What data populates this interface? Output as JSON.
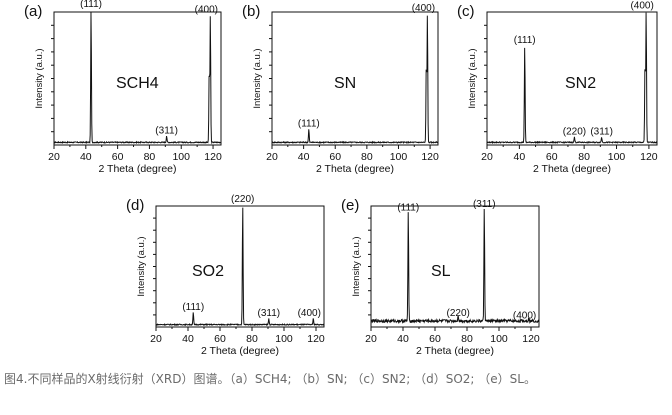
{
  "figure": {
    "caption": "图4.不同样品的X射线衍射（XRD）图谱。（a）SCH4; （b）SN; （c）SN2; （d）SO2; （e）SL。"
  },
  "colors": {
    "trace": "#111111",
    "axis": "#111111",
    "caption": "#6a6a6a"
  },
  "chart_data": [
    {
      "type": "line",
      "panel_label": "(a)",
      "sample": "SCH4",
      "xlabel": "2 Theta (degree)",
      "ylabel": "Intensity (a.u.)",
      "xlim": [
        20,
        125
      ],
      "xticks": [
        20,
        40,
        60,
        80,
        100,
        120
      ],
      "grid": false,
      "baseline": 0.02,
      "noise": 0.004,
      "peaks": [
        {
          "x": 43.3,
          "y": 1.0,
          "label": "(111)"
        },
        {
          "x": 90.8,
          "y": 0.05,
          "label": "(311)"
        },
        {
          "x": 117.6,
          "y": 0.55,
          "label": ""
        },
        {
          "x": 118.3,
          "y": 0.96,
          "label": "(400)"
        }
      ]
    },
    {
      "type": "line",
      "panel_label": "(b)",
      "sample": "SN",
      "xlabel": "2 Theta (degree)",
      "ylabel": "Intensity (a.u.)",
      "xlim": [
        20,
        125
      ],
      "xticks": [
        20,
        40,
        60,
        80,
        100,
        120
      ],
      "grid": false,
      "baseline": 0.02,
      "noise": 0.004,
      "peaks": [
        {
          "x": 43.3,
          "y": 0.1,
          "label": "(111)"
        },
        {
          "x": 117.6,
          "y": 0.6,
          "label": ""
        },
        {
          "x": 118.3,
          "y": 0.97,
          "label": "(400)"
        }
      ]
    },
    {
      "type": "line",
      "panel_label": "(c)",
      "sample": "SN2",
      "xlabel": "2 Theta (degree)",
      "ylabel": "Intensity (a.u.)",
      "xlim": [
        20,
        125
      ],
      "xticks": [
        20,
        40,
        60,
        80,
        100,
        120
      ],
      "grid": false,
      "baseline": 0.02,
      "noise": 0.004,
      "peaks": [
        {
          "x": 43.3,
          "y": 0.73,
          "label": "(111)"
        },
        {
          "x": 74.0,
          "y": 0.04,
          "label": "(220)"
        },
        {
          "x": 90.8,
          "y": 0.04,
          "label": "(311)"
        },
        {
          "x": 117.6,
          "y": 0.6,
          "label": ""
        },
        {
          "x": 118.3,
          "y": 0.99,
          "label": "(400)"
        }
      ]
    },
    {
      "type": "line",
      "panel_label": "(d)",
      "sample": "SO2",
      "xlabel": "2 Theta (degree)",
      "ylabel": "Intensity (a.u.)",
      "xlim": [
        20,
        125
      ],
      "xticks": [
        20,
        40,
        60,
        80,
        100,
        120
      ],
      "grid": false,
      "baseline": 0.02,
      "noise": 0.004,
      "peaks": [
        {
          "x": 43.3,
          "y": 0.1,
          "label": "(111)"
        },
        {
          "x": 74.2,
          "y": 0.99,
          "label": "(220)"
        },
        {
          "x": 90.5,
          "y": 0.05,
          "label": "(311)"
        },
        {
          "x": 118.3,
          "y": 0.05,
          "label": "(400)"
        }
      ]
    },
    {
      "type": "line",
      "panel_label": "(e)",
      "sample": "SL",
      "xlabel": "2 Theta (degree)",
      "ylabel": "Intensity (a.u.)",
      "xlim": [
        20,
        125
      ],
      "xticks": [
        20,
        40,
        60,
        80,
        100,
        120
      ],
      "grid": false,
      "baseline": 0.05,
      "noise": 0.012,
      "peaks": [
        {
          "x": 43.3,
          "y": 0.92,
          "label": "(111)"
        },
        {
          "x": 74.5,
          "y": 0.05,
          "label": "(220)"
        },
        {
          "x": 90.8,
          "y": 0.95,
          "label": "(311)"
        },
        {
          "x": 118.5,
          "y": 0.03,
          "label": "(400)"
        }
      ]
    }
  ]
}
